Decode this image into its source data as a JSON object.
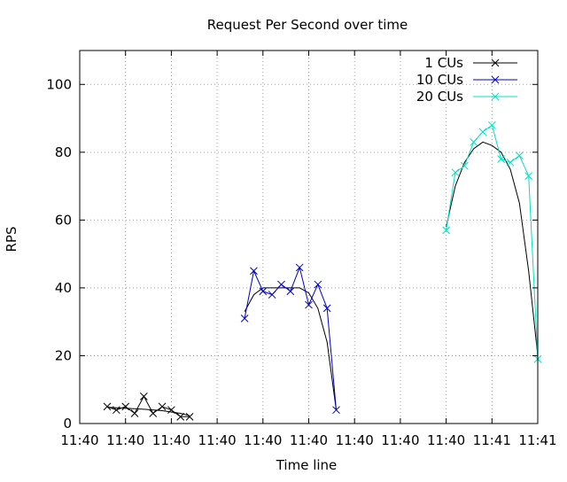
{
  "chart_data": {
    "type": "line",
    "title": "Request Per Second over time",
    "xlabel": "Time line",
    "ylabel": "RPS",
    "ylim": [
      0,
      110
    ],
    "xlim": [
      0,
      10
    ],
    "yticks": [
      0,
      20,
      40,
      60,
      80,
      100
    ],
    "xticks": [
      {
        "x": 0,
        "label": "11:40"
      },
      {
        "x": 1,
        "label": "11:40"
      },
      {
        "x": 2,
        "label": "11:40"
      },
      {
        "x": 3,
        "label": "11:40"
      },
      {
        "x": 4,
        "label": "11:40"
      },
      {
        "x": 5,
        "label": "11:40"
      },
      {
        "x": 6,
        "label": "11:40"
      },
      {
        "x": 7,
        "label": "11:40"
      },
      {
        "x": 8,
        "label": "11:40"
      },
      {
        "x": 9,
        "label": "11:41"
      },
      {
        "x": 10,
        "label": "11:41"
      }
    ],
    "grid": true,
    "legend_position": "top-right",
    "series": [
      {
        "name": "1 CUs",
        "color": "#000000",
        "x": [
          0.6,
          0.8,
          1.0,
          1.2,
          1.4,
          1.6,
          1.8,
          2.0,
          2.2,
          2.4
        ],
        "y": [
          5,
          4,
          5,
          3,
          8,
          3,
          5,
          4,
          2,
          2
        ]
      },
      {
        "name": "10 CUs",
        "color": "#0000cc",
        "x": [
          3.6,
          3.8,
          4.0,
          4.2,
          4.4,
          4.6,
          4.8,
          5.0,
          5.2,
          5.4,
          5.6
        ],
        "y": [
          31,
          45,
          39,
          38,
          41,
          39,
          46,
          35,
          41,
          34,
          4
        ]
      },
      {
        "name": "20 CUs",
        "color": "#00e0c0",
        "x": [
          8.0,
          8.2,
          8.4,
          8.6,
          8.8,
          9.0,
          9.2,
          9.4,
          9.6,
          9.8,
          10.0
        ],
        "y": [
          57,
          74,
          76,
          83,
          86,
          88,
          78,
          77,
          79,
          73,
          19
        ]
      }
    ],
    "trendlines": [
      {
        "x": [
          0.6,
          1.0,
          1.4,
          1.8,
          2.2,
          2.4
        ],
        "y": [
          4.8,
          4.5,
          4.2,
          3.8,
          3.0,
          2.3
        ]
      },
      {
        "x": [
          3.6,
          3.8,
          4.0,
          4.2,
          4.4,
          4.6,
          4.8,
          5.0,
          5.2,
          5.4,
          5.6
        ],
        "y": [
          33,
          38,
          40,
          40,
          40,
          40,
          40,
          38.5,
          34,
          24,
          4
        ]
      },
      {
        "x": [
          8.0,
          8.2,
          8.4,
          8.6,
          8.8,
          9.0,
          9.2,
          9.4,
          9.6,
          9.8,
          10.0
        ],
        "y": [
          58,
          70,
          77,
          81,
          83,
          82,
          80,
          75,
          65,
          45,
          20
        ]
      }
    ]
  }
}
